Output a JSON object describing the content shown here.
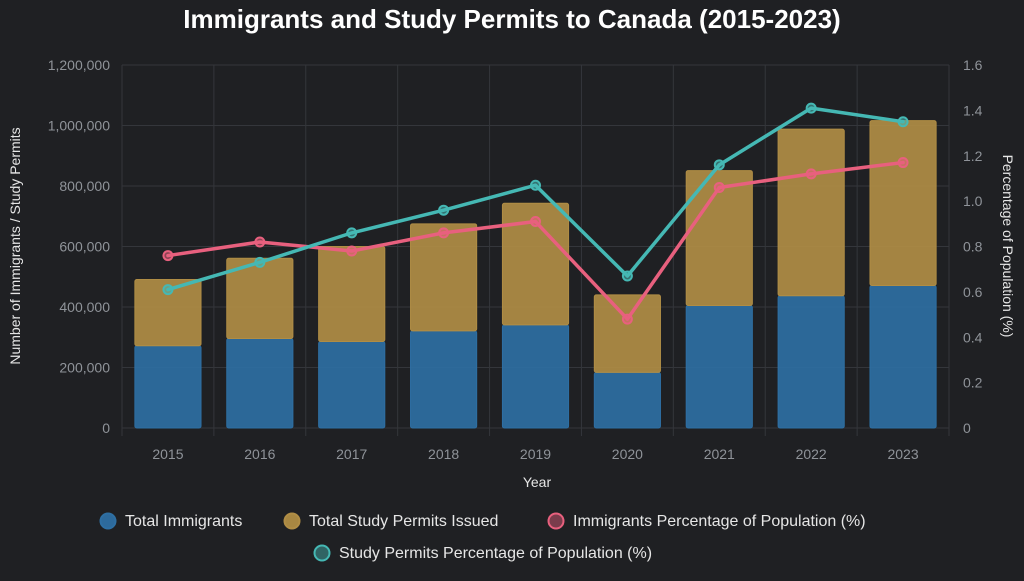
{
  "chart_data": {
    "type": "bar",
    "title": "Immigrants and Study Permits to Canada (2015-2023)",
    "xlabel": "Year",
    "ylabel": "Number of Immigrants / Study Permits",
    "y2label": "Percentage of Population (%)",
    "categories": [
      "2015",
      "2016",
      "2017",
      "2018",
      "2019",
      "2020",
      "2021",
      "2022",
      "2023"
    ],
    "ylim": [
      0,
      1200000
    ],
    "y2lim": [
      0,
      1.6
    ],
    "y_ticks": [
      "0",
      "200,000",
      "400,000",
      "600,000",
      "800,000",
      "1,000,000",
      "1,200,000"
    ],
    "y2_ticks": [
      "0",
      "0.2",
      "0.4",
      "0.6",
      "0.8",
      "1.0",
      "1.2",
      "1.4",
      "1.6"
    ],
    "stacked": true,
    "grid": true,
    "legend_position": "bottom",
    "series": [
      {
        "name": "Total Immigrants",
        "type": "bar",
        "axis": "left",
        "color": "#2e6fa3",
        "values": [
          272000,
          296000,
          286000,
          321000,
          341000,
          184000,
          405000,
          437000,
          471000
        ]
      },
      {
        "name": "Total Study Permits Issued",
        "type": "bar",
        "axis": "left",
        "color": "#b08d45",
        "values": [
          219000,
          265000,
          314000,
          354000,
          402000,
          256000,
          446000,
          551000,
          545000
        ]
      },
      {
        "name": "Immigrants Percentage of Population (%)",
        "type": "line",
        "axis": "right",
        "color": "#e8607e",
        "values": [
          0.76,
          0.82,
          0.78,
          0.86,
          0.91,
          0.48,
          1.06,
          1.12,
          1.17
        ]
      },
      {
        "name": "Study Permits Percentage of Population (%)",
        "type": "line",
        "axis": "right",
        "color": "#45b8b4",
        "values": [
          0.61,
          0.73,
          0.86,
          0.96,
          1.07,
          0.67,
          1.16,
          1.41,
          1.35
        ]
      }
    ]
  }
}
